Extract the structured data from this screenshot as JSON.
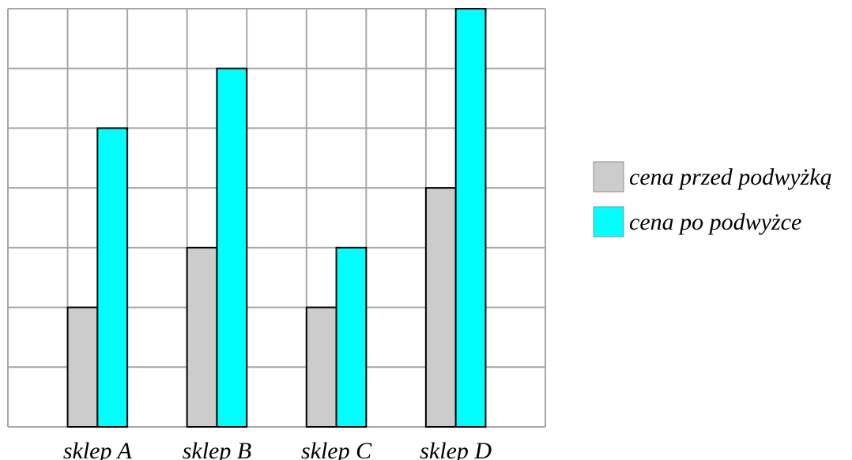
{
  "chart_data": {
    "type": "bar",
    "title": "",
    "xlabel": "",
    "ylabel": "",
    "categories": [
      "sklep A",
      "sklep B",
      "sklep C",
      "sklep D"
    ],
    "series": [
      {
        "name": "cena przed podwyżką",
        "color": "#cccccc",
        "values": [
          2,
          3,
          2,
          4
        ]
      },
      {
        "name": "cena po podwyżce",
        "color": "#00ffff",
        "values": [
          5,
          6,
          3,
          7
        ]
      }
    ],
    "ylim": [
      0,
      7
    ],
    "grid": true,
    "legend_position": "right"
  }
}
